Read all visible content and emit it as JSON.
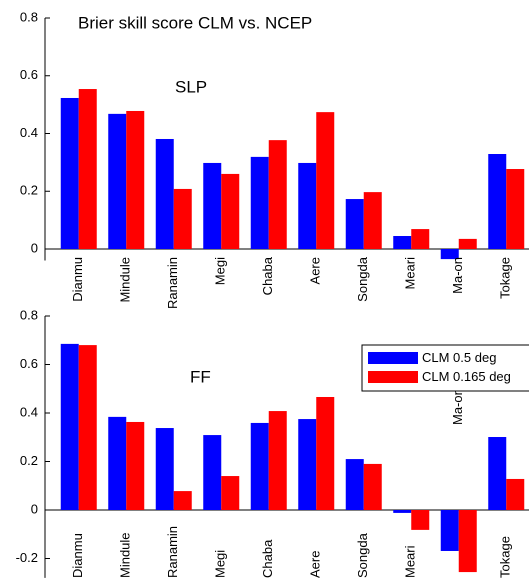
{
  "chart_data": [
    {
      "type": "bar",
      "title": "Brier skill score CLM vs. NCEP",
      "annotation": "SLP",
      "categories": [
        "Dianmu",
        "Mindule",
        "Ranamin",
        "Megi",
        "Chaba",
        "Aere",
        "Songda",
        "Meari",
        "Ma-on",
        "Tokage"
      ],
      "series": [
        {
          "color": "#0000ff",
          "values": [
            0.523,
            0.468,
            0.381,
            0.298,
            0.319,
            0.298,
            0.173,
            0.045,
            -0.035,
            0.329
          ]
        },
        {
          "color": "#ff0000",
          "values": [
            0.554,
            0.478,
            0.208,
            0.26,
            0.377,
            0.474,
            0.197,
            0.069,
            0.035,
            0.277
          ]
        }
      ],
      "ylim": [
        -0.04,
        0.8
      ],
      "yticks": [
        0,
        0.2,
        0.4,
        0.6,
        0.8
      ]
    },
    {
      "type": "bar",
      "annotation": "FF",
      "categories": [
        "Dianmu",
        "Mindule",
        "Ranamin",
        "Megi",
        "Chaba",
        "Aere",
        "Songda",
        "Meari",
        "Ma-on",
        "Tokage"
      ],
      "series": [
        {
          "name": "CLM 0.5 deg",
          "color": "#0000ff",
          "values": [
            0.685,
            0.384,
            0.338,
            0.309,
            0.359,
            0.375,
            0.21,
            -0.012,
            -0.169,
            0.301
          ]
        },
        {
          "name": "CLM 0.165 deg",
          "color": "#ff0000",
          "values": [
            0.68,
            0.363,
            0.078,
            0.14,
            0.408,
            0.466,
            0.19,
            -0.082,
            -0.256,
            0.128
          ]
        }
      ],
      "ylim": [
        -0.28,
        0.8
      ],
      "yticks": [
        -0.2,
        0,
        0.2,
        0.4,
        0.6,
        0.8
      ],
      "legend": "upper right"
    }
  ]
}
